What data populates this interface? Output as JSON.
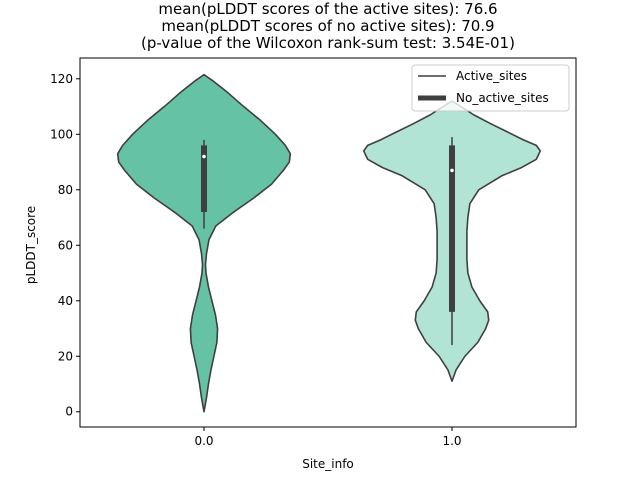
{
  "chart_data": {
    "type": "violin",
    "title_lines": [
      "mean(pLDDT scores of the active sites): 76.6",
      "mean(pLDDT scores of no active sites): 70.9",
      "(p-value of the Wilcoxon rank-sum test: 3.54E-01)"
    ],
    "xlabel": "Site_info",
    "ylabel": "pLDDT_score",
    "categories": [
      "0.0",
      "1.0"
    ],
    "ylim": [
      -5.5,
      127.5
    ],
    "yticks": [
      0,
      20,
      40,
      60,
      80,
      100,
      120
    ],
    "legend": {
      "position": "top-right",
      "entries": [
        {
          "label": "Active_sites",
          "style": "thin-line"
        },
        {
          "label": "No_active_sites",
          "style": "thick-line"
        }
      ]
    },
    "series": [
      {
        "category": "0.0",
        "color": "#66c2a5",
        "box": {
          "q1": 72,
          "median": 92,
          "q3": 96,
          "whisker_low": 66,
          "whisker_high": 98
        },
        "density": [
          [
            0,
            0.0
          ],
          [
            5,
            0.025
          ],
          [
            10,
            0.045
          ],
          [
            15,
            0.07
          ],
          [
            20,
            0.1
          ],
          [
            25,
            0.13
          ],
          [
            30,
            0.137
          ],
          [
            35,
            0.115
          ],
          [
            40,
            0.08
          ],
          [
            45,
            0.045
          ],
          [
            50,
            0.02
          ],
          [
            53,
            0.015
          ],
          [
            57,
            0.025
          ],
          [
            62,
            0.05
          ],
          [
            67,
            0.12
          ],
          [
            72,
            0.3
          ],
          [
            77,
            0.5
          ],
          [
            82,
            0.68
          ],
          [
            87,
            0.8
          ],
          [
            90,
            0.86
          ],
          [
            93,
            0.87
          ],
          [
            96,
            0.82
          ],
          [
            100,
            0.72
          ],
          [
            105,
            0.57
          ],
          [
            110,
            0.4
          ],
          [
            115,
            0.24
          ],
          [
            119,
            0.1
          ],
          [
            121.5,
            0.0
          ]
        ]
      },
      {
        "category": "1.0",
        "color": "#b2e4d5",
        "box": {
          "q1": 36,
          "median": 87,
          "q3": 96,
          "whisker_low": 24,
          "whisker_high": 99
        },
        "density": [
          [
            11,
            0.0
          ],
          [
            15,
            0.04
          ],
          [
            20,
            0.13
          ],
          [
            25,
            0.26
          ],
          [
            30,
            0.34
          ],
          [
            33,
            0.37
          ],
          [
            36,
            0.36
          ],
          [
            40,
            0.28
          ],
          [
            45,
            0.2
          ],
          [
            50,
            0.16
          ],
          [
            55,
            0.15
          ],
          [
            60,
            0.15
          ],
          [
            65,
            0.15
          ],
          [
            70,
            0.16
          ],
          [
            75,
            0.18
          ],
          [
            80,
            0.27
          ],
          [
            85,
            0.5
          ],
          [
            88,
            0.7
          ],
          [
            91,
            0.85
          ],
          [
            94,
            0.89
          ],
          [
            96,
            0.85
          ],
          [
            98,
            0.72
          ],
          [
            101,
            0.55
          ],
          [
            104,
            0.38
          ],
          [
            107,
            0.22
          ],
          [
            110,
            0.09
          ],
          [
            112,
            0.0
          ]
        ]
      }
    ]
  }
}
